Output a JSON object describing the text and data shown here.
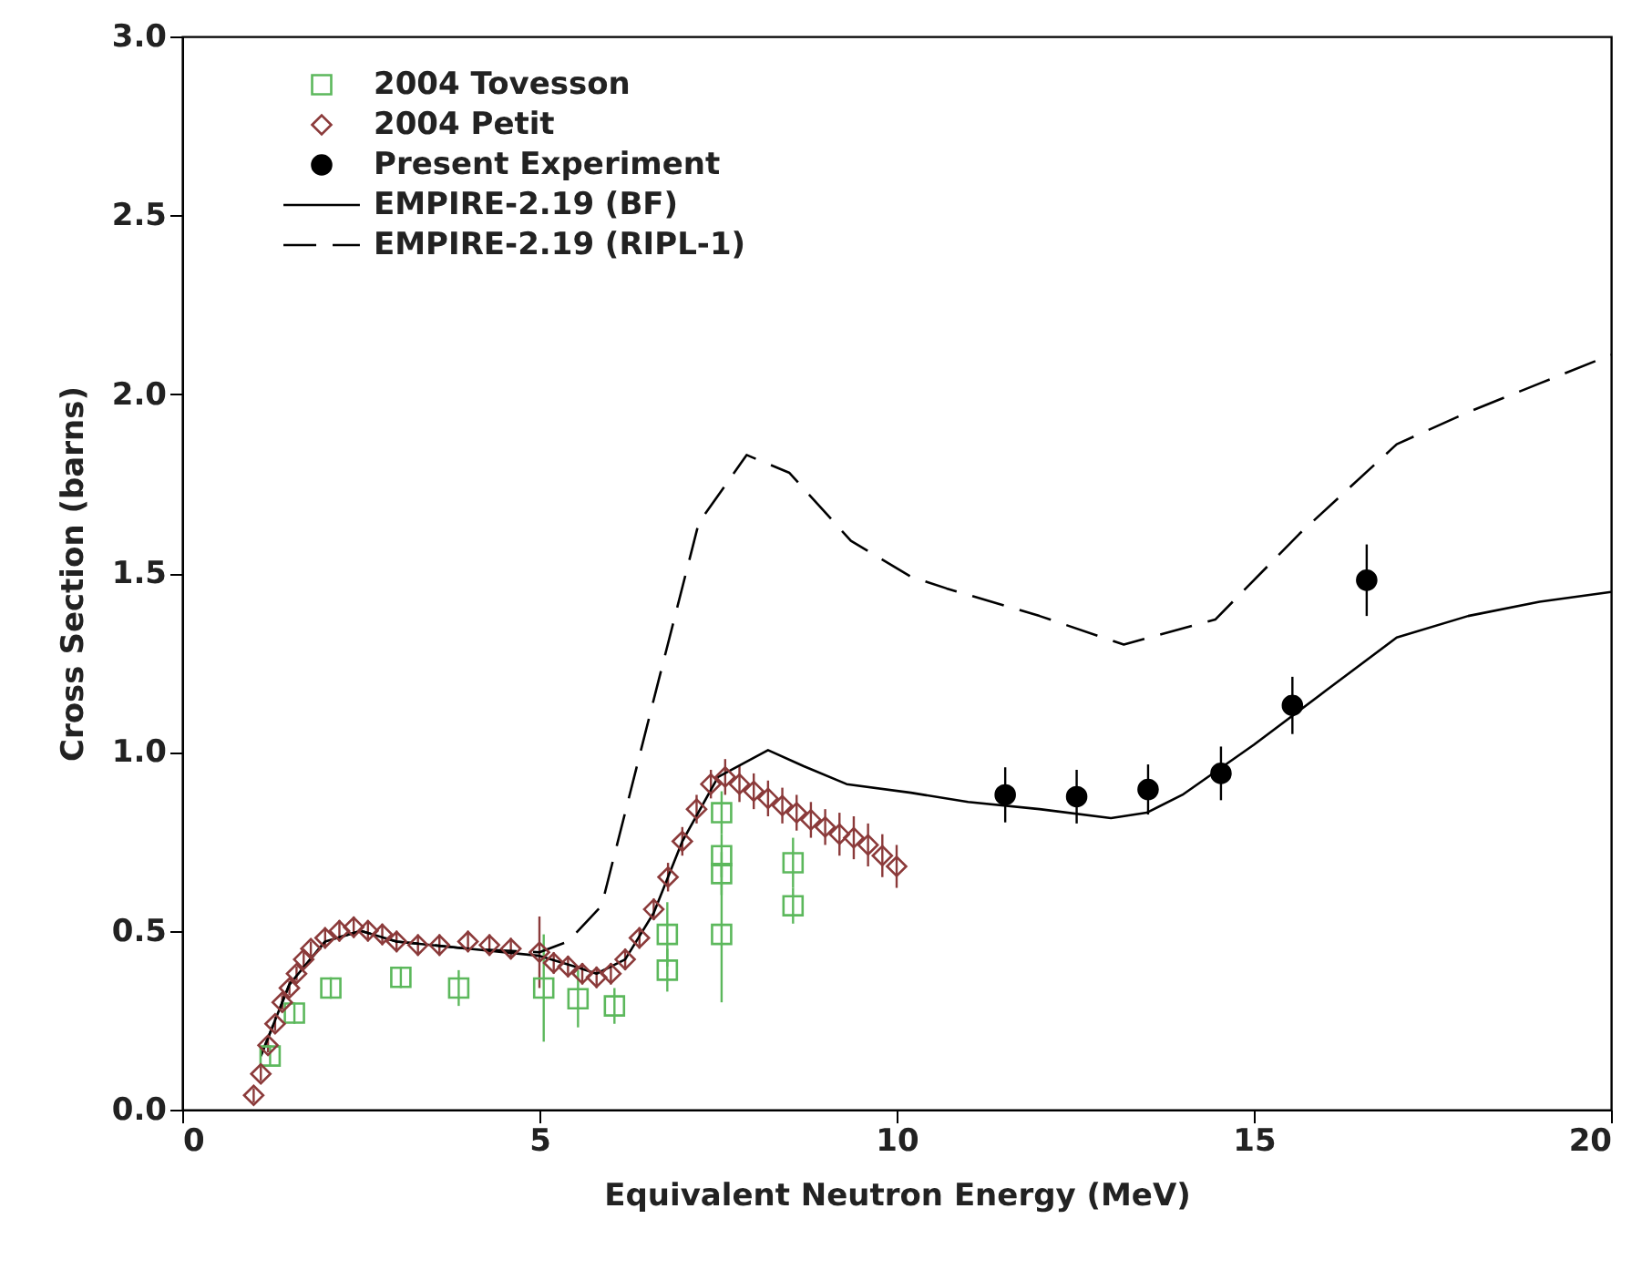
{
  "chart_data": {
    "type": "scatter",
    "xlabel": "Equivalent Neutron Energy (MeV)",
    "ylabel": "Cross Section (barns)",
    "xlim": [
      0,
      20
    ],
    "xticks": [
      0,
      5,
      10,
      15,
      20
    ],
    "ylim": [
      0,
      3
    ],
    "yticks": [
      {
        "value": 0,
        "label": "0.0"
      },
      {
        "value": 0.5,
        "label": "0.5"
      },
      {
        "value": 1,
        "label": "1.0"
      },
      {
        "value": 1.5,
        "label": "1.5"
      },
      {
        "value": 2,
        "label": "2.0"
      },
      {
        "value": 2.5,
        "label": "2.5"
      },
      {
        "value": 3,
        "label": "3.0"
      }
    ],
    "grid": false,
    "legend": "top left",
    "series": [
      {
        "name": "2004 Tovesson",
        "color": "#5cb85c",
        "marker": "square",
        "x": [
          1.23,
          1.57,
          2.08,
          3.06,
          3.87,
          5.06,
          5.54,
          6.05,
          6.79,
          6.79,
          7.55,
          7.55,
          7.55,
          7.55,
          8.55,
          8.55
        ],
        "values": [
          0.15,
          0.27,
          0.34,
          0.37,
          0.34,
          0.34,
          0.31,
          0.29,
          0.49,
          0.39,
          0.83,
          0.71,
          0.66,
          0.49,
          0.69,
          0.57
        ],
        "errors": [
          0.03,
          0.03,
          0.03,
          0.03,
          0.05,
          0.15,
          0.08,
          0.05,
          0.09,
          0.06,
          0.06,
          0.06,
          0.06,
          0.19,
          0.07,
          0.05
        ]
      },
      {
        "name": "2004 Petit",
        "color": "#8b3a3a",
        "marker": "diamond",
        "x": [
          1.0,
          1.1,
          1.2,
          1.3,
          1.4,
          1.5,
          1.6,
          1.7,
          1.8,
          2.0,
          2.2,
          2.4,
          2.6,
          2.8,
          3.0,
          3.3,
          3.6,
          4.0,
          4.3,
          4.6,
          5.0,
          5.2,
          5.4,
          5.6,
          5.8,
          6.0,
          6.2,
          6.4,
          6.6,
          6.8,
          7.0,
          7.2,
          7.4,
          7.6,
          7.8,
          8.0,
          8.2,
          8.4,
          8.6,
          8.8,
          9.0,
          9.2,
          9.4,
          9.6,
          9.8,
          10.0
        ],
        "values": [
          0.04,
          0.1,
          0.18,
          0.24,
          0.3,
          0.34,
          0.38,
          0.42,
          0.45,
          0.48,
          0.5,
          0.51,
          0.5,
          0.49,
          0.47,
          0.46,
          0.46,
          0.47,
          0.46,
          0.45,
          0.44,
          0.41,
          0.4,
          0.38,
          0.37,
          0.38,
          0.42,
          0.48,
          0.56,
          0.65,
          0.75,
          0.84,
          0.91,
          0.93,
          0.91,
          0.89,
          0.87,
          0.85,
          0.83,
          0.81,
          0.79,
          0.77,
          0.76,
          0.74,
          0.71,
          0.68
        ],
        "errors": [
          0.02,
          0.02,
          0.02,
          0.02,
          0.02,
          0.02,
          0.02,
          0.02,
          0.02,
          0.03,
          0.03,
          0.03,
          0.03,
          0.03,
          0.03,
          0.03,
          0.03,
          0.03,
          0.03,
          0.03,
          0.1,
          0.03,
          0.03,
          0.03,
          0.03,
          0.03,
          0.03,
          0.03,
          0.03,
          0.04,
          0.04,
          0.04,
          0.04,
          0.05,
          0.05,
          0.05,
          0.05,
          0.05,
          0.05,
          0.05,
          0.05,
          0.06,
          0.06,
          0.06,
          0.06,
          0.06
        ]
      },
      {
        "name": "Present Experiment",
        "color": "#000000",
        "marker": "circle",
        "x": [
          11.52,
          12.52,
          13.52,
          14.54,
          15.54,
          16.58
        ],
        "values": [
          0.88,
          0.875,
          0.895,
          0.94,
          1.13,
          1.48
        ],
        "errors": [
          0.077,
          0.075,
          0.07,
          0.075,
          0.08,
          0.1
        ]
      },
      {
        "name": "EMPIRE-2.19 (BF)",
        "type": "line",
        "line_style": "solid",
        "color": "#000000",
        "x": [
          1.1,
          1.5,
          2,
          2.5,
          3,
          4,
          5,
          5.5,
          5.8,
          6.2,
          6.6,
          7,
          7.5,
          8.2,
          8.7,
          9.3,
          10.2,
          11,
          12,
          13,
          13.5,
          14,
          15,
          16,
          17,
          18,
          19,
          20
        ],
        "values": [
          0.15,
          0.35,
          0.47,
          0.5,
          0.47,
          0.45,
          0.43,
          0.4,
          0.38,
          0.42,
          0.55,
          0.75,
          0.93,
          1.005,
          0.96,
          0.91,
          0.886,
          0.86,
          0.84,
          0.815,
          0.83,
          0.88,
          1.02,
          1.17,
          1.32,
          1.38,
          1.42,
          1.447
        ]
      },
      {
        "name": "EMPIRE-2.19 (RIPL-1)",
        "type": "line",
        "line_style": "dashed",
        "color": "#000000",
        "x": [
          1.1,
          1.5,
          2,
          2.5,
          3,
          4,
          5,
          5.4,
          5.87,
          6.63,
          7.23,
          7.9,
          8.5,
          9.36,
          10.2,
          10.7,
          12,
          13.18,
          14.46,
          15.64,
          17,
          18,
          19,
          20
        ],
        "values": [
          0.15,
          0.35,
          0.47,
          0.5,
          0.47,
          0.45,
          0.44,
          0.47,
          0.57,
          1.17,
          1.64,
          1.83,
          1.78,
          1.59,
          1.49,
          1.457,
          1.38,
          1.3,
          1.37,
          1.61,
          1.86,
          1.95,
          2.03,
          2.11
        ]
      }
    ]
  }
}
